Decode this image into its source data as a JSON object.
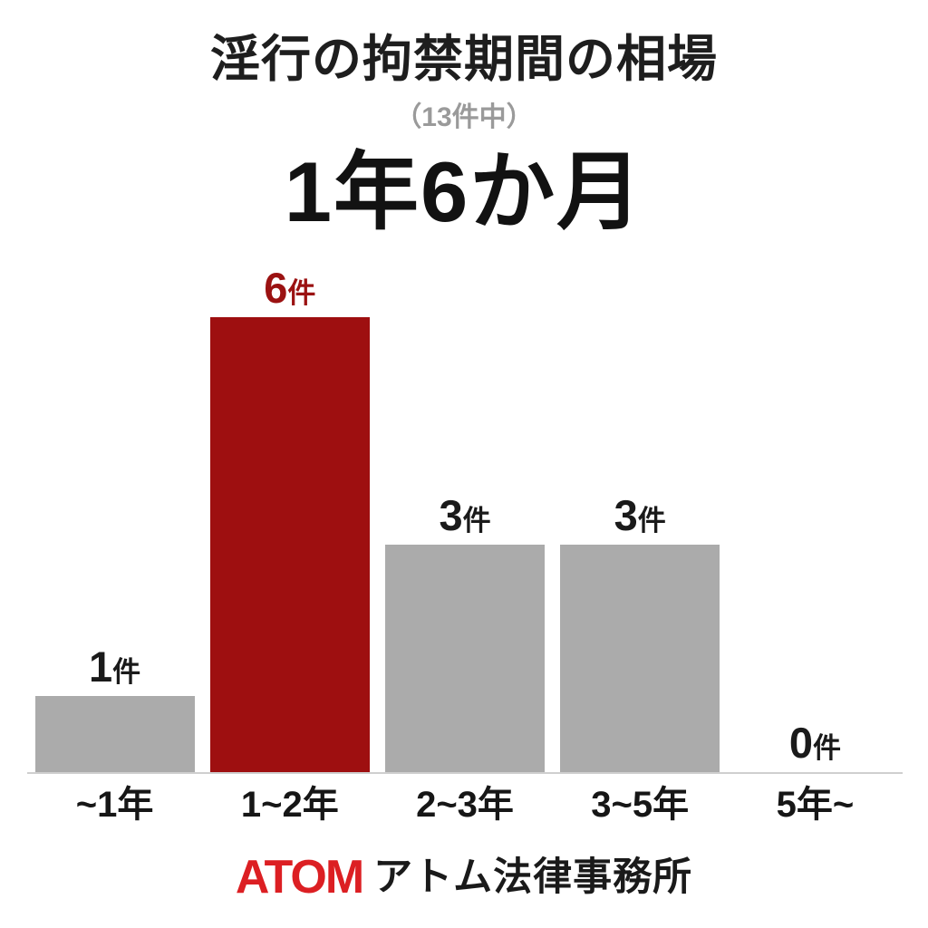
{
  "chart_data": {
    "type": "bar",
    "title": "淫行の拘禁期間の相場",
    "subtitle": "（13件中）",
    "headline_value": "1年6か月",
    "categories": [
      "~1年",
      "1~2年",
      "2~3年",
      "3~5年",
      "5年~"
    ],
    "values": [
      1,
      6,
      3,
      3,
      0
    ],
    "unit": "件",
    "value_labels": [
      "1件",
      "6件",
      "3件",
      "3件",
      "0件"
    ],
    "ylim": [
      0,
      6
    ],
    "grid": false,
    "legend": false,
    "highlight_index": 1,
    "bar_colors": [
      "#ababab",
      "#9e0f10",
      "#ababab",
      "#ababab",
      "#ababab"
    ]
  },
  "colors": {
    "background": "#ffffff",
    "title_text": "#1e1e1e",
    "subtitle_text": "#9a9a9a",
    "headline_text": "#121212",
    "bar_gray": "#ababab",
    "bar_red": "#9e0f10",
    "label_red": "#9b1212",
    "label_black": "#1a1a1a",
    "axis_line": "#cfcfcf",
    "brand_red": "#dc1f23"
  },
  "footer": {
    "brand": "ATOM",
    "firm_name": "アトム法律事務所"
  }
}
